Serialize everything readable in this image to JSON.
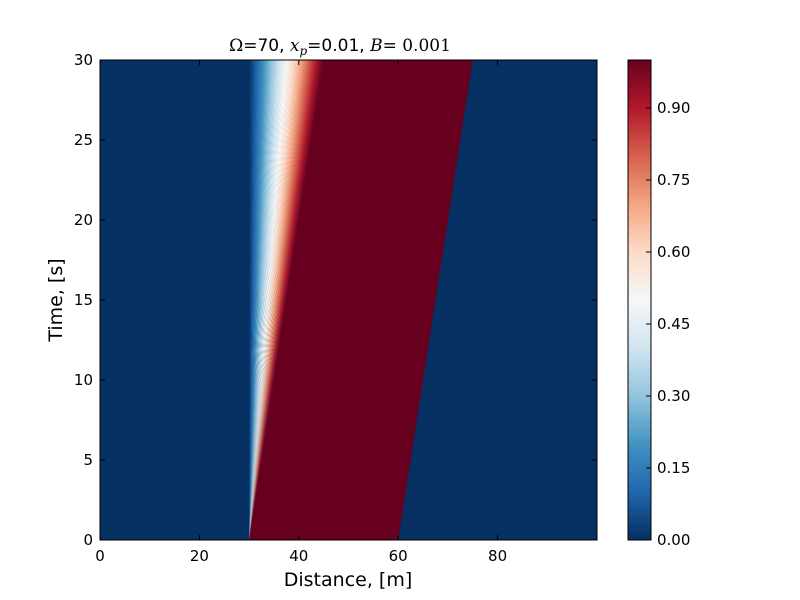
{
  "chart_data": {
    "type": "heatmap",
    "title": {
      "omega_symbol": "Ω",
      "omega_value": "=70, ",
      "xp_symbol": "x",
      "xp_subscript": "p",
      "xp_value": "=0.01, ",
      "b_symbol": "B",
      "b_value": "= 0.001"
    },
    "xlabel": "Distance, [m]",
    "ylabel": "Time, [s]",
    "xlim": [
      0,
      100
    ],
    "ylim": [
      0,
      30
    ],
    "x_ticks": [
      "0",
      "20",
      "40",
      "60",
      "80"
    ],
    "x_tick_values": [
      0,
      20,
      40,
      60,
      80
    ],
    "y_ticks": [
      "0",
      "5",
      "10",
      "15",
      "20",
      "25",
      "30"
    ],
    "y_tick_values": [
      0,
      5,
      10,
      15,
      20,
      25,
      30
    ],
    "colorbar": {
      "range": [
        0,
        1
      ],
      "ticks": [
        "0.00",
        "0.15",
        "0.30",
        "0.45",
        "0.60",
        "0.75",
        "0.90"
      ],
      "tick_values": [
        0,
        0.15,
        0.3,
        0.45,
        0.6,
        0.75,
        0.9
      ],
      "colormap": "RdBu_r",
      "colors": [
        "#053061",
        "#2166ac",
        "#4393c3",
        "#92c5de",
        "#d1e5f0",
        "#f7f7f7",
        "#fddbc7",
        "#f4a582",
        "#d6604d",
        "#b2182b",
        "#67001f"
      ]
    },
    "field": {
      "background_value": 0.0,
      "fan_origin": [
        30,
        0
      ],
      "fan_left_edge_at_top": [
        30,
        30
      ],
      "fan_right_edge_at_top": [
        45,
        30
      ],
      "shock_start": [
        60,
        0
      ],
      "shock_end": [
        75,
        30
      ],
      "plateau_value": 1.0,
      "right_state_value": 0.0
    },
    "colors": {
      "frame": "#000000",
      "background": "#ffffff"
    }
  }
}
